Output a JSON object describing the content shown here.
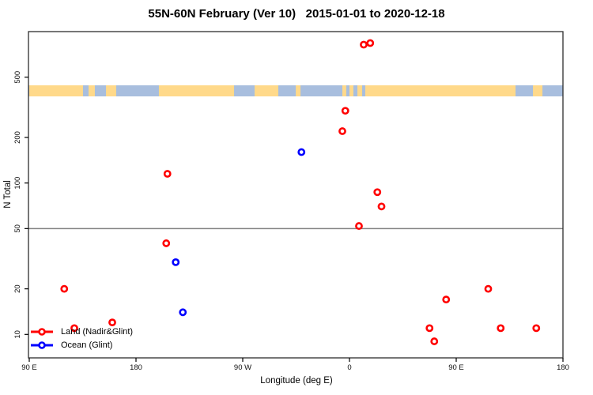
{
  "chart_data": {
    "type": "scatter",
    "title": "55N-60N February (Ver 10)   2015-01-01 to 2020-12-18",
    "xlabel": "Longitude (deg E)",
    "ylabel": "N Total",
    "x_axis": {
      "note": "longitude axis wraps eastward: 90E -> 180 -> 90W -> 0 -> 90E -> 180; stored as continuous degrees 90..540",
      "min_deg": 90,
      "max_deg": 540,
      "ticks": [
        {
          "deg": 90,
          "label": "90 E"
        },
        {
          "deg": 180,
          "label": "180"
        },
        {
          "deg": 270,
          "label": "90 W"
        },
        {
          "deg": 360,
          "label": "0"
        },
        {
          "deg": 450,
          "label": "90 E"
        },
        {
          "deg": 540,
          "label": "180"
        }
      ]
    },
    "y_axis": {
      "scale": "log",
      "min": 7,
      "max": 1000,
      "ticks": [
        10,
        20,
        50,
        100,
        200,
        500
      ]
    },
    "reference_line_n": 50,
    "reference_line_color": "#808080",
    "map_strip": {
      "ocean_color": "#A8BEDE",
      "land_color": "#FFD98A",
      "land_segments_deg": [
        [
          90,
          135.3
        ],
        [
          140,
          145.3
        ],
        [
          154.7,
          163.3
        ],
        [
          199.3,
          262.7
        ],
        [
          280,
          300
        ],
        [
          314.7,
          318.7
        ],
        [
          354,
          357.3
        ],
        [
          360,
          363.3
        ],
        [
          366.7,
          370.7
        ],
        [
          373.3,
          500
        ],
        [
          514.7,
          522.7
        ]
      ]
    },
    "series": [
      {
        "name": "Land (Nadir&Glint)",
        "color": "#FF0000",
        "points": [
          {
            "x_deg": 372.0,
            "n": 820
          },
          {
            "x_deg": 377.5,
            "n": 840
          },
          {
            "x_deg": 356.5,
            "n": 300
          },
          {
            "x_deg": 354.0,
            "n": 220
          },
          {
            "x_deg": 206.5,
            "n": 115
          },
          {
            "x_deg": 383.5,
            "n": 87
          },
          {
            "x_deg": 387.0,
            "n": 70
          },
          {
            "x_deg": 368.0,
            "n": 52
          },
          {
            "x_deg": 205.5,
            "n": 40
          },
          {
            "x_deg": 119.5,
            "n": 20
          },
          {
            "x_deg": 477.0,
            "n": 20
          },
          {
            "x_deg": 441.5,
            "n": 17
          },
          {
            "x_deg": 160.0,
            "n": 12
          },
          {
            "x_deg": 128.0,
            "n": 11
          },
          {
            "x_deg": 427.5,
            "n": 11
          },
          {
            "x_deg": 487.5,
            "n": 11
          },
          {
            "x_deg": 517.5,
            "n": 11
          },
          {
            "x_deg": 431.5,
            "n": 9
          }
        ]
      },
      {
        "name": "Ocean (Glint)",
        "color": "#0000FF",
        "points": [
          {
            "x_deg": 319.5,
            "n": 160
          },
          {
            "x_deg": 213.5,
            "n": 30
          },
          {
            "x_deg": 219.5,
            "n": 14
          }
        ]
      }
    ],
    "legend": {
      "position": "bottom-left",
      "items": [
        "Land (Nadir&Glint)",
        "Ocean (Glint)"
      ]
    }
  }
}
